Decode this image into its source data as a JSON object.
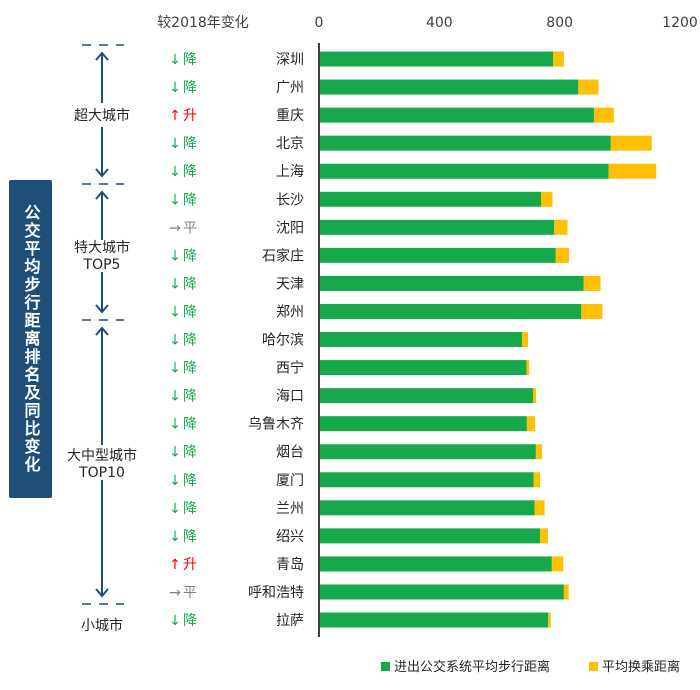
{
  "side_title": "公交平均步行距离排名及同比变化",
  "change_header": "较2018年变化",
  "groups": [
    {
      "label": "超大城市",
      "label2": ""
    },
    {
      "label": "特大城市",
      "label2": "TOP5"
    },
    {
      "label": "大中型城市",
      "label2": "TOP10"
    },
    {
      "label": "小城市",
      "label2": ""
    }
  ],
  "colors": {
    "walk": "#17a84b",
    "transfer": "#ffc000",
    "down": "#17a84b",
    "up": "#ff0000",
    "flat": "#808080",
    "bracket": "#1f4e79",
    "side_bg": "#1f4e79"
  },
  "chart_data": {
    "type": "bar",
    "orientation": "horizontal",
    "stacked": true,
    "categories": [
      "深圳",
      "广州",
      "重庆",
      "北京",
      "上海",
      "长沙",
      "沈阳",
      "石家庄",
      "天津",
      "郑州",
      "哈尔滨",
      "西宁",
      "海口",
      "乌鲁木齐",
      "烟台",
      "厦门",
      "兰州",
      "绍兴",
      "青岛",
      "呼和浩特",
      "拉萨"
    ],
    "series": [
      {
        "name": "进出公交系统平均步行距离",
        "values": [
          778,
          862,
          914,
          970,
          963,
          738,
          782,
          787,
          880,
          872,
          675,
          690,
          712,
          691,
          721,
          713,
          717,
          735,
          774,
          814,
          762
        ]
      },
      {
        "name": "平均换乘距离",
        "values": [
          36,
          67,
          66,
          136,
          158,
          38,
          44,
          44,
          56,
          70,
          20,
          9,
          10,
          27,
          20,
          22,
          33,
          26,
          38,
          16,
          8
        ]
      }
    ],
    "changes": [
      {
        "arrow": "↓",
        "text": "降",
        "dir": "down"
      },
      {
        "arrow": "↓",
        "text": "降",
        "dir": "down"
      },
      {
        "arrow": "↑",
        "text": "升",
        "dir": "up"
      },
      {
        "arrow": "↓",
        "text": "降",
        "dir": "down"
      },
      {
        "arrow": "↓",
        "text": "降",
        "dir": "down"
      },
      {
        "arrow": "↓",
        "text": "降",
        "dir": "down"
      },
      {
        "arrow": "→",
        "text": "平",
        "dir": "flat"
      },
      {
        "arrow": "↓",
        "text": "降",
        "dir": "down"
      },
      {
        "arrow": "↓",
        "text": "降",
        "dir": "down"
      },
      {
        "arrow": "↓",
        "text": "降",
        "dir": "down"
      },
      {
        "arrow": "↓",
        "text": "降",
        "dir": "down"
      },
      {
        "arrow": "↓",
        "text": "降",
        "dir": "down"
      },
      {
        "arrow": "↓",
        "text": "降",
        "dir": "down"
      },
      {
        "arrow": "↓",
        "text": "降",
        "dir": "down"
      },
      {
        "arrow": "↓",
        "text": "降",
        "dir": "down"
      },
      {
        "arrow": "↓",
        "text": "降",
        "dir": "down"
      },
      {
        "arrow": "↓",
        "text": "降",
        "dir": "down"
      },
      {
        "arrow": "↓",
        "text": "降",
        "dir": "down"
      },
      {
        "arrow": "↑",
        "text": "升",
        "dir": "up"
      },
      {
        "arrow": "→",
        "text": "平",
        "dir": "flat"
      },
      {
        "arrow": "↓",
        "text": "降",
        "dir": "down"
      }
    ],
    "x_ticks": [
      0,
      400,
      800,
      1200
    ],
    "xlim": [
      0,
      1200
    ],
    "legend_position": "bottom-right",
    "grid": false
  }
}
